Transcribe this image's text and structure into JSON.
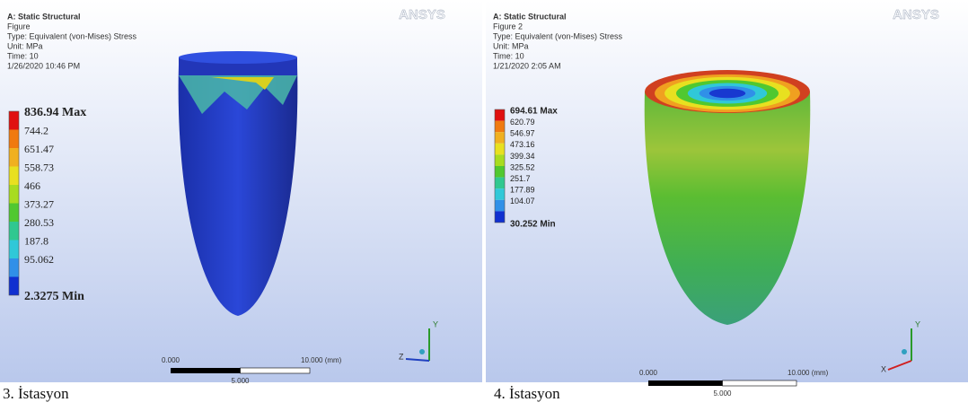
{
  "panels": [
    {
      "brand": "ANSYS",
      "header": [
        "A: Static Structural",
        "Figure",
        "Type: Equivalent (von-Mises) Stress",
        "Unit: MPa",
        "Time: 10",
        "1/26/2020 10:46 PM"
      ],
      "legend": [
        "836.94 Max",
        "744.2",
        "651.47",
        "558.73",
        "466",
        "373.27",
        "280.53",
        "187.8",
        "95.062",
        "2.3275 Min"
      ],
      "scale": [
        "0.000",
        "10.000 (mm)",
        "5.000"
      ],
      "triad": [
        "Y",
        "Z"
      ],
      "caption": "3. İstasyon"
    },
    {
      "brand": "ANSYS",
      "header": [
        "A: Static Structural",
        "Figure 2",
        "Type: Equivalent (von-Mises) Stress",
        "Unit: MPa",
        "Time: 10",
        "1/21/2020 2:05 AM"
      ],
      "legend": [
        "694.61 Max",
        "620.79",
        "546.97",
        "473.16",
        "399.34",
        "325.52",
        "251.7",
        "177.89",
        "104.07",
        "30.252 Min"
      ],
      "scale": [
        "0.000",
        "10.000 (mm)",
        "5.000"
      ],
      "triad": [
        "Y",
        "X"
      ],
      "caption": "4. İstasyon"
    }
  ]
}
